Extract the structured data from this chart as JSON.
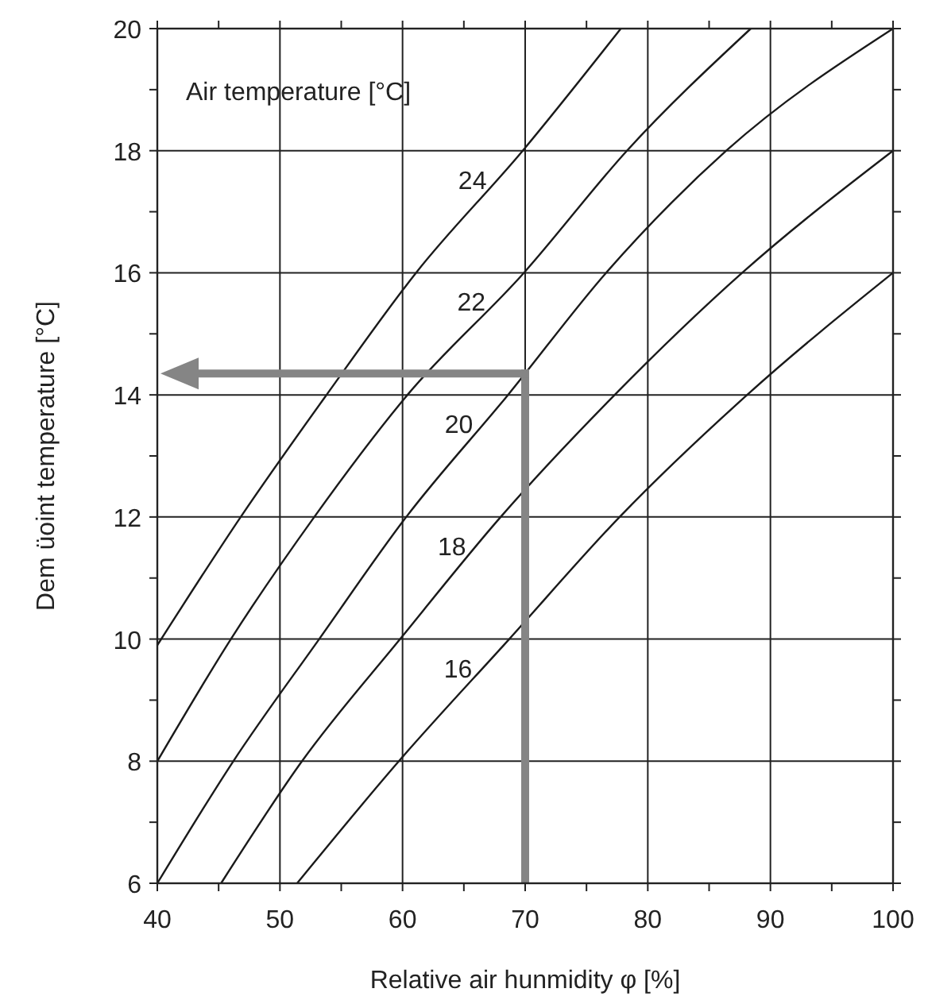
{
  "chart_data": {
    "type": "line",
    "xlabel": "Relative air hunmidity φ [%]",
    "ylabel": "Dem üoint temperature [°C]",
    "legend_title": "Air temperature [°C]",
    "legend": false,
    "grid": true,
    "marker": "none",
    "line_style": "solid",
    "xlim": [
      40,
      100
    ],
    "ylim": [
      6,
      20
    ],
    "xticks": [
      40,
      {
        "value": 45,
        "label": null
      },
      50,
      {
        "value": 55,
        "label": null
      },
      60,
      {
        "value": 65,
        "label": null
      },
      70,
      {
        "value": 75,
        "label": null
      },
      80,
      {
        "value": 85,
        "label": null
      },
      90,
      {
        "value": 95,
        "label": null
      },
      100
    ],
    "yticks": [
      6,
      {
        "value": 7,
        "label": null
      },
      8,
      {
        "value": 9,
        "label": null
      },
      10,
      {
        "value": 11,
        "label": null
      },
      12,
      {
        "value": 13,
        "label": null
      },
      14,
      {
        "value": 15,
        "label": null
      },
      16,
      {
        "value": 17,
        "label": null
      },
      18,
      {
        "value": 19,
        "label": null
      },
      20
    ],
    "series": [
      {
        "name": "24",
        "color": "#1a1a1a",
        "x": [
          40,
          46.8,
          53.8,
          61.1,
          69.8,
          77.8
        ],
        "values": [
          9.9,
          12,
          14,
          16,
          18,
          20
        ]
      },
      {
        "name": "22",
        "color": "#1a1a1a",
        "x": [
          40,
          46,
          52.8,
          60.4,
          69.9,
          78.3,
          88.4
        ],
        "values": [
          8,
          10,
          12,
          14,
          16,
          18,
          20
        ]
      },
      {
        "name": "20",
        "color": "#1a1a1a",
        "x": [
          40,
          46.2,
          53.2,
          60.3,
          68.6,
          76.6,
          86.4,
          100
        ],
        "values": [
          6,
          8,
          10,
          12,
          14,
          16,
          18,
          20
        ]
      },
      {
        "name": "18",
        "color": "#1a1a1a",
        "x": [
          45.2,
          51.8,
          59.8,
          68,
          77.3,
          87.7,
          100
        ],
        "values": [
          6,
          8,
          10,
          12,
          14,
          16,
          18
        ]
      },
      {
        "name": "16",
        "color": "#1a1a1a",
        "x": [
          51.4,
          59.7,
          68.7,
          77.7,
          88.1,
          100
        ],
        "values": [
          6,
          8,
          10,
          12,
          14,
          16
        ]
      }
    ],
    "ref_lines": [
      {
        "axis": "x",
        "value": 70,
        "color": "#858585"
      },
      {
        "axis": "y",
        "value": 14.35,
        "color": "#858585"
      }
    ]
  }
}
